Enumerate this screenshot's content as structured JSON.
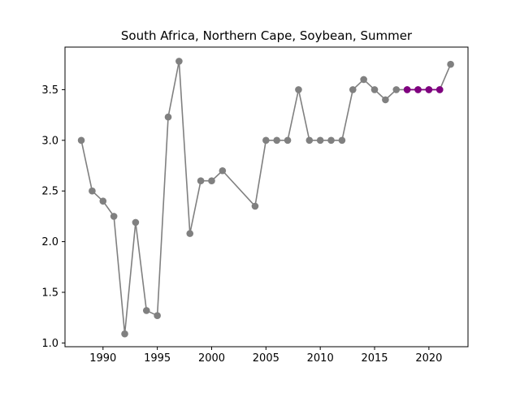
{
  "chart_data": {
    "type": "line",
    "title": "South Africa, Northern Cape, Soybean, Summer",
    "xlabel": "",
    "ylabel": "",
    "xlim": [
      1986.5,
      2023.6
    ],
    "ylim": [
      0.963,
      3.92
    ],
    "x_ticks": [
      1990,
      1995,
      2000,
      2005,
      2010,
      2015,
      2020
    ],
    "y_ticks": [
      1.0,
      1.5,
      2.0,
      2.5,
      3.0,
      3.5
    ],
    "grid": false,
    "legend": "none",
    "series": [
      {
        "color": "#808080",
        "marker": "circle",
        "points": [
          [
            1988,
            3.0
          ],
          [
            1989,
            2.5
          ],
          [
            1990,
            2.4
          ],
          [
            1991,
            2.25
          ],
          [
            1992,
            1.09
          ],
          [
            1993,
            2.19
          ],
          [
            1994,
            1.32
          ],
          [
            1995,
            1.27
          ],
          [
            1996,
            3.23
          ],
          [
            1997,
            3.78
          ],
          [
            1998,
            2.08
          ],
          [
            1999,
            2.6
          ],
          [
            2000,
            2.6
          ],
          [
            2001,
            2.7
          ],
          [
            2004,
            2.35
          ],
          [
            2005,
            3.0
          ],
          [
            2006,
            3.0
          ],
          [
            2007,
            3.0
          ],
          [
            2008,
            3.5
          ],
          [
            2009,
            3.0
          ],
          [
            2010,
            3.0
          ],
          [
            2011,
            3.0
          ],
          [
            2012,
            3.0
          ],
          [
            2013,
            3.5
          ],
          [
            2014,
            3.6
          ],
          [
            2015,
            3.5
          ],
          [
            2016,
            3.4
          ],
          [
            2017,
            3.5
          ],
          [
            2018,
            3.5
          ],
          [
            2019,
            3.5
          ],
          [
            2020,
            3.5
          ],
          [
            2021,
            3.5
          ],
          [
            2022,
            3.75
          ]
        ]
      },
      {
        "color": "#800080",
        "marker": "circle",
        "points": [
          [
            2018,
            3.5
          ],
          [
            2019,
            3.5
          ],
          [
            2020,
            3.5
          ],
          [
            2021,
            3.5
          ]
        ]
      }
    ]
  }
}
